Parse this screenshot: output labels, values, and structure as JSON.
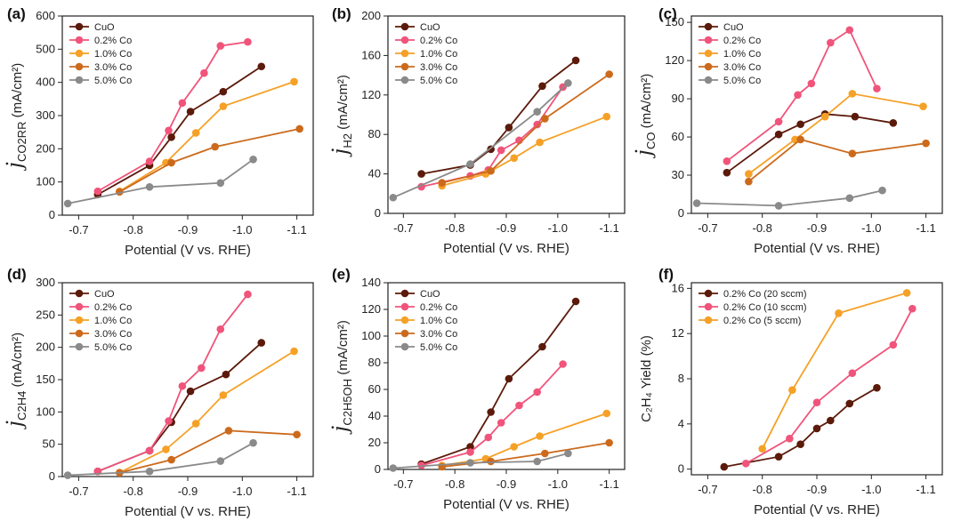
{
  "figure": {
    "xlabel": "Potential (V vs. RHE)",
    "xticks": [
      "-0.7",
      "-0.8",
      "-0.9",
      "-1.0",
      "-1.1"
    ],
    "colors": {
      "CuO": "#5b1a0a",
      "0.2% Co": "#f0547a",
      "1.0% Co": "#f5a127",
      "3.0% Co": "#cc6a1c",
      "5.0% Co": "#8a8a8a",
      "0.2% Co (20 sccm)": "#5b1a0a",
      "0.2% Co (10 sccm)": "#f0547a",
      "0.2% Co (5 sccm)": "#f5a127"
    }
  },
  "chart_data": [
    {
      "type": "line",
      "panel_label": "(a)",
      "ylabel": {
        "j": "j",
        "sub": "CO2RR",
        "rest": " (mA/cm²)"
      },
      "xlim": [
        -0.67,
        -1.13
      ],
      "ylim": [
        0,
        600
      ],
      "yticks": [
        "0",
        "100",
        "200",
        "300",
        "400",
        "500",
        "600"
      ],
      "xlabel": "Potential (V vs. RHE)",
      "series": [
        {
          "name": "CuO",
          "x": [
            -0.735,
            -0.83,
            -0.87,
            -0.905,
            -0.965,
            -1.035
          ],
          "y": [
            62,
            150,
            235,
            312,
            372,
            448
          ]
        },
        {
          "name": "0.2% Co",
          "x": [
            -0.735,
            -0.83,
            -0.865,
            -0.89,
            -0.93,
            -0.96,
            -1.01
          ],
          "y": [
            72,
            162,
            255,
            338,
            428,
            510,
            522
          ]
        },
        {
          "name": "1.0% Co",
          "x": [
            -0.775,
            -0.86,
            -0.915,
            -0.965,
            -1.095
          ],
          "y": [
            72,
            158,
            248,
            328,
            402
          ]
        },
        {
          "name": "3.0% Co",
          "x": [
            -0.775,
            -0.87,
            -0.95,
            -1.105
          ],
          "y": [
            70,
            158,
            206,
            260
          ]
        },
        {
          "name": "5.0% Co",
          "x": [
            -0.68,
            -0.83,
            -0.96,
            -1.02
          ],
          "y": [
            35,
            85,
            97,
            168
          ]
        }
      ]
    },
    {
      "type": "line",
      "panel_label": "(b)",
      "ylabel": {
        "j": "j",
        "sub": "H2",
        "rest": " (mA/cm²)"
      },
      "xlim": [
        -0.67,
        -1.13
      ],
      "ylim": [
        0,
        200
      ],
      "yticks": [
        "0",
        "40",
        "80",
        "120",
        "160",
        "200"
      ],
      "xlabel": "Potential (V vs. RHE)",
      "series": [
        {
          "name": "CuO",
          "x": [
            -0.735,
            -0.83,
            -0.87,
            -0.905,
            -0.97,
            -1.035
          ],
          "y": [
            40,
            49,
            65,
            87,
            129,
            155
          ]
        },
        {
          "name": "0.2% Co",
          "x": [
            -0.735,
            -0.83,
            -0.865,
            -0.89,
            -0.925,
            -0.96,
            -1.01
          ],
          "y": [
            27,
            38,
            44,
            64,
            74,
            90,
            128
          ]
        },
        {
          "name": "1.0% Co",
          "x": [
            -0.775,
            -0.86,
            -0.915,
            -0.965,
            -1.095
          ],
          "y": [
            28,
            40,
            56,
            72,
            98
          ]
        },
        {
          "name": "3.0% Co",
          "x": [
            -0.775,
            -0.87,
            -0.975,
            -1.1
          ],
          "y": [
            31,
            43,
            96,
            141
          ]
        },
        {
          "name": "5.0% Co",
          "x": [
            -0.68,
            -0.83,
            -0.96,
            -1.02
          ],
          "y": [
            16,
            50,
            103,
            132
          ]
        }
      ]
    },
    {
      "type": "line",
      "panel_label": "(c)",
      "ylabel": {
        "j": "j",
        "sub": "CO",
        "rest": " (mA/cm²)"
      },
      "xlim": [
        -0.67,
        -1.13
      ],
      "ylim": [
        0,
        155
      ],
      "yticks": [
        "0",
        "30",
        "60",
        "90",
        "120",
        "150"
      ],
      "xlabel": "Potential (V vs. RHE)",
      "series": [
        {
          "name": "CuO",
          "x": [
            -0.735,
            -0.83,
            -0.87,
            -0.915,
            -0.97,
            -1.04
          ],
          "y": [
            32,
            62,
            70,
            78,
            76,
            71
          ]
        },
        {
          "name": "0.2% Co",
          "x": [
            -0.735,
            -0.83,
            -0.865,
            -0.89,
            -0.925,
            -0.96,
            -1.01
          ],
          "y": [
            41,
            72,
            93,
            102,
            134,
            144,
            98
          ]
        },
        {
          "name": "1.0% Co",
          "x": [
            -0.775,
            -0.86,
            -0.915,
            -0.965,
            -1.095
          ],
          "y": [
            31,
            58,
            76,
            94,
            84
          ]
        },
        {
          "name": "3.0% Co",
          "x": [
            -0.775,
            -0.87,
            -0.965,
            -1.1
          ],
          "y": [
            25,
            58,
            47,
            55
          ]
        },
        {
          "name": "5.0% Co",
          "x": [
            -0.68,
            -0.83,
            -0.96,
            -1.02
          ],
          "y": [
            8,
            6,
            12,
            18
          ]
        }
      ]
    },
    {
      "type": "line",
      "panel_label": "(d)",
      "ylabel": {
        "j": "j",
        "sub": "C2H4",
        "rest": " (mA/cm²)"
      },
      "xlim": [
        -0.67,
        -1.13
      ],
      "ylim": [
        0,
        300
      ],
      "yticks": [
        "0",
        "50",
        "100",
        "150",
        "200",
        "250",
        "300"
      ],
      "xlabel": "Potential (V vs. RHE)",
      "series": [
        {
          "name": "CuO",
          "x": [
            -0.735,
            -0.83,
            -0.87,
            -0.905,
            -0.97,
            -1.035
          ],
          "y": [
            8,
            40,
            84,
            132,
            158,
            207
          ]
        },
        {
          "name": "0.2% Co",
          "x": [
            -0.735,
            -0.83,
            -0.865,
            -0.89,
            -0.925,
            -0.96,
            -1.01
          ],
          "y": [
            8,
            40,
            86,
            140,
            168,
            228,
            282
          ]
        },
        {
          "name": "1.0% Co",
          "x": [
            -0.775,
            -0.86,
            -0.915,
            -0.965,
            -1.095
          ],
          "y": [
            6,
            42,
            82,
            126,
            194
          ]
        },
        {
          "name": "3.0% Co",
          "x": [
            -0.775,
            -0.87,
            -0.975,
            -1.1
          ],
          "y": [
            6,
            26,
            71,
            65
          ]
        },
        {
          "name": "5.0% Co",
          "x": [
            -0.68,
            -0.83,
            -0.96,
            -1.02
          ],
          "y": [
            2,
            8,
            24,
            52
          ]
        }
      ]
    },
    {
      "type": "line",
      "panel_label": "(e)",
      "ylabel": {
        "j": "j",
        "sub": "C2H5OH",
        "rest": " (mA/cm²)"
      },
      "xlim": [
        -0.67,
        -1.13
      ],
      "ylim": [
        0,
        140
      ],
      "yticks": [
        "0",
        "20",
        "40",
        "60",
        "80",
        "100",
        "120",
        "140"
      ],
      "xlabel": "Potential (V vs. RHE)",
      "series": [
        {
          "name": "CuO",
          "x": [
            -0.735,
            -0.83,
            -0.87,
            -0.905,
            -0.97,
            -1.035
          ],
          "y": [
            4,
            17,
            43,
            68,
            92,
            126
          ]
        },
        {
          "name": "0.2% Co",
          "x": [
            -0.735,
            -0.83,
            -0.865,
            -0.89,
            -0.925,
            -0.96,
            -1.01
          ],
          "y": [
            3,
            13,
            24,
            35,
            48,
            58,
            79
          ]
        },
        {
          "name": "1.0% Co",
          "x": [
            -0.775,
            -0.86,
            -0.915,
            -0.965,
            -1.095
          ],
          "y": [
            3,
            8,
            17,
            25,
            42
          ]
        },
        {
          "name": "3.0% Co",
          "x": [
            -0.775,
            -0.87,
            -0.975,
            -1.1
          ],
          "y": [
            2,
            6,
            12,
            20
          ]
        },
        {
          "name": "5.0% Co",
          "x": [
            -0.68,
            -0.83,
            -0.96,
            -1.02
          ],
          "y": [
            1,
            5,
            6,
            12
          ]
        }
      ]
    },
    {
      "type": "line",
      "panel_label": "(f)",
      "ylabel": {
        "text": "C₂H₄ Yield (%)"
      },
      "xlim": [
        -0.67,
        -1.13
      ],
      "ylim": [
        -0.5,
        16.5
      ],
      "yticks": [
        "0",
        "4",
        "8",
        "12",
        "16"
      ],
      "ytick_values": [
        0,
        4,
        8,
        12,
        16
      ],
      "xlabel": "Potential (V vs. RHE)",
      "series": [
        {
          "name": "0.2% Co (20 sccm)",
          "x": [
            -0.73,
            -0.83,
            -0.87,
            -0.9,
            -0.925,
            -0.96,
            -1.01
          ],
          "y": [
            0.2,
            1.1,
            2.2,
            3.6,
            4.3,
            5.8,
            7.2
          ]
        },
        {
          "name": "0.2% Co (10 sccm)",
          "x": [
            -0.77,
            -0.85,
            -0.9,
            -0.965,
            -1.04,
            -1.075
          ],
          "y": [
            0.5,
            2.7,
            5.9,
            8.5,
            11.0,
            14.2
          ]
        },
        {
          "name": "0.2% Co (5 sccm)",
          "x": [
            -0.8,
            -0.855,
            -0.94,
            -1.065
          ],
          "y": [
            1.8,
            7.0,
            13.8,
            15.6
          ]
        }
      ]
    }
  ]
}
